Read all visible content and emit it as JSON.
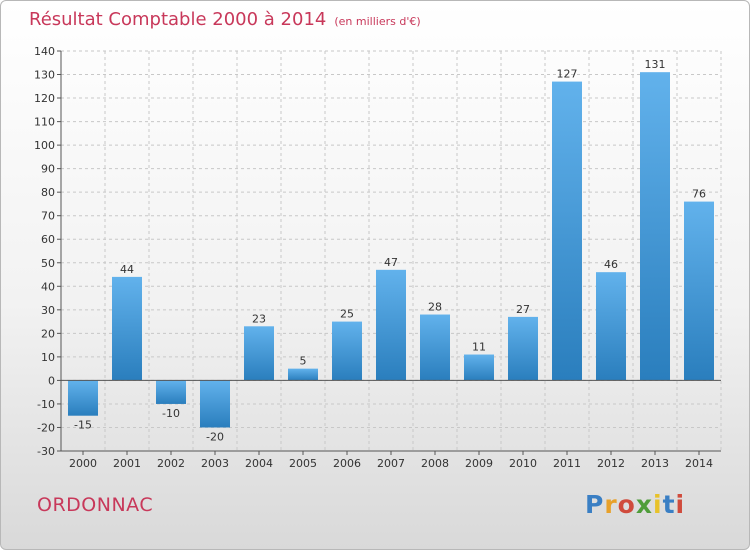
{
  "header": {
    "title": "Résultat Comptable 2000 à 2014",
    "unit": "(en milliers d'€)"
  },
  "footer": {
    "commune": "ORDONNAC",
    "logo_letters": [
      "P",
      "r",
      "o",
      "x",
      "i",
      "t",
      "i"
    ],
    "logo_colors": [
      "#3a7fc4",
      "#e8a12a",
      "#d04b3c",
      "#4f9d3a",
      "#e8c22a",
      "#3a7fc4",
      "#d04b3c"
    ]
  },
  "colors": {
    "bar_top": "#62b2ec",
    "bar_bottom": "#2a7ebd",
    "grid": "#c8c8c8",
    "title": "#c8385a"
  },
  "chart_data": {
    "type": "bar",
    "title": "Résultat Comptable 2000 à 2014",
    "ylabel": "en milliers d'€",
    "xlabel": "",
    "categories": [
      "2000",
      "2001",
      "2002",
      "2003",
      "2004",
      "2005",
      "2006",
      "2007",
      "2008",
      "2009",
      "2010",
      "2011",
      "2012",
      "2013",
      "2014"
    ],
    "values": [
      -15,
      44,
      -10,
      -20,
      23,
      5,
      25,
      47,
      28,
      11,
      27,
      127,
      46,
      131,
      76
    ],
    "value_labels": [
      "-15",
      "44",
      "-10",
      "-20",
      "23",
      "5",
      "25",
      "47",
      "28",
      "11",
      "27",
      "127",
      "46",
      "131",
      "76"
    ],
    "ylim": [
      -30,
      140
    ],
    "yticks": [
      -30,
      -20,
      -10,
      0,
      10,
      20,
      30,
      40,
      50,
      60,
      70,
      80,
      90,
      100,
      110,
      120,
      130,
      140
    ],
    "grid": true
  }
}
